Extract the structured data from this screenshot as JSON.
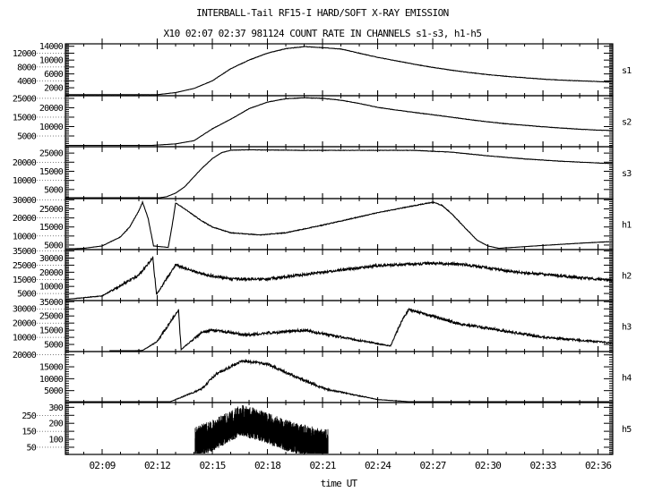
{
  "title": "INTERBALL-Tail RF15-I HARD/SOFT X-RAY EMISSION",
  "subtitle": "X10  02:07 02:37 981124  COUNT RATE IN CHANNELS s1-s3, h1-h5",
  "chart_data": {
    "type": "line",
    "title": "INTERBALL-Tail RF15-I HARD/SOFT X-RAY EMISSION",
    "xlabel": "time UT",
    "x_units": "minutes after 02:00",
    "xlim": [
      7,
      36.8
    ],
    "x_ticks": [
      9,
      12,
      15,
      18,
      21,
      24,
      27,
      30,
      33,
      36
    ],
    "x_tick_labels": [
      "02:09",
      "02:12",
      "02:15",
      "02:18",
      "02:21",
      "02:24",
      "02:27",
      "02:30",
      "02:33",
      "02:36"
    ],
    "colors": {
      "line": "#000000",
      "axis": "#000000",
      "background": "#ffffff"
    },
    "panels": [
      {
        "name": "s1",
        "ylim": [
          -300,
          14700
        ],
        "y_ticks": [
          2000,
          4000,
          6000,
          8000,
          10000,
          12000,
          14000
        ],
        "noise": 60,
        "points": [
          [
            7,
            0
          ],
          [
            12,
            0
          ],
          [
            13,
            600
          ],
          [
            14,
            1800
          ],
          [
            15,
            4000
          ],
          [
            16,
            7500
          ],
          [
            17,
            10000
          ],
          [
            18,
            12000
          ],
          [
            19,
            13300
          ],
          [
            20,
            13900
          ],
          [
            21,
            13600
          ],
          [
            22,
            13200
          ],
          [
            23,
            12000
          ],
          [
            24,
            10800
          ],
          [
            25,
            9800
          ],
          [
            26,
            8800
          ],
          [
            27,
            7900
          ],
          [
            28,
            7100
          ],
          [
            29,
            6400
          ],
          [
            30,
            5800
          ],
          [
            31,
            5300
          ],
          [
            32,
            4900
          ],
          [
            33,
            4500
          ],
          [
            34,
            4200
          ],
          [
            35,
            4000
          ],
          [
            36,
            3800
          ],
          [
            36.8,
            3600
          ]
        ]
      },
      {
        "name": "s2",
        "ylim": [
          -700,
          26400
        ],
        "y_ticks": [
          5000,
          10000,
          15000,
          20000,
          25000
        ],
        "noise": 100,
        "points": [
          [
            7,
            0
          ],
          [
            11.7,
            0
          ],
          [
            13,
            800
          ],
          [
            14,
            2500
          ],
          [
            15,
            8800
          ],
          [
            16,
            13900
          ],
          [
            17,
            19500
          ],
          [
            18,
            23000
          ],
          [
            19,
            24800
          ],
          [
            20,
            25300
          ],
          [
            21,
            25000
          ],
          [
            22,
            24000
          ],
          [
            23,
            22300
          ],
          [
            24,
            20200
          ],
          [
            25,
            18800
          ],
          [
            26,
            17500
          ],
          [
            27,
            16300
          ],
          [
            28,
            15000
          ],
          [
            29,
            13700
          ],
          [
            30,
            12500
          ],
          [
            31,
            11500
          ],
          [
            32,
            10700
          ],
          [
            33,
            9900
          ],
          [
            34,
            9200
          ],
          [
            35,
            8600
          ],
          [
            36,
            8100
          ],
          [
            36.8,
            7900
          ]
        ]
      },
      {
        "name": "s3",
        "ylim": [
          0,
          28500
        ],
        "y_ticks": [
          5000,
          10000,
          15000,
          20000,
          25000
        ],
        "noise": 100,
        "points": [
          [
            7,
            0
          ],
          [
            11.4,
            0
          ],
          [
            12,
            300
          ],
          [
            12.5,
            1000
          ],
          [
            13,
            3000
          ],
          [
            13.5,
            6500
          ],
          [
            14,
            12000
          ],
          [
            14.4,
            16300
          ],
          [
            15,
            22000
          ],
          [
            15.5,
            25200
          ],
          [
            16,
            26600
          ],
          [
            17,
            26800
          ],
          [
            20,
            26500
          ],
          [
            24,
            26500
          ],
          [
            26,
            26500
          ],
          [
            28,
            25500
          ],
          [
            30,
            23500
          ],
          [
            32,
            21800
          ],
          [
            34,
            20500
          ],
          [
            36.8,
            19200
          ]
        ]
      },
      {
        "name": "h1",
        "ylim": [
          2500,
          30700
        ],
        "y_ticks": [
          5000,
          10000,
          15000,
          20000,
          25000,
          30000
        ],
        "noise": 200,
        "points": [
          [
            7,
            2800
          ],
          [
            8,
            3200
          ],
          [
            9,
            4500
          ],
          [
            10,
            9500
          ],
          [
            10.5,
            15000
          ],
          [
            11,
            24000
          ],
          [
            11.2,
            28700
          ],
          [
            11.5,
            20000
          ],
          [
            11.8,
            4500
          ],
          [
            12.6,
            3700
          ],
          [
            12.8,
            15000
          ],
          [
            13,
            28300
          ],
          [
            13.5,
            25000
          ],
          [
            14.4,
            18500
          ],
          [
            15,
            15000
          ],
          [
            16,
            11800
          ],
          [
            17.6,
            10600
          ],
          [
            19,
            11800
          ],
          [
            21,
            16000
          ],
          [
            24,
            22900
          ],
          [
            26,
            26800
          ],
          [
            27,
            28700
          ],
          [
            27.5,
            27000
          ],
          [
            28,
            22600
          ],
          [
            29.4,
            7800
          ],
          [
            30,
            4500
          ],
          [
            30.6,
            3200
          ],
          [
            33,
            4800
          ],
          [
            35,
            6000
          ],
          [
            36.8,
            7000
          ]
        ]
      },
      {
        "name": "h2",
        "ylim": [
          0,
          36000
        ],
        "y_ticks": [
          5000,
          10000,
          15000,
          20000,
          25000,
          30000,
          35000
        ],
        "noise": 900,
        "points": [
          [
            7,
            800
          ],
          [
            9,
            3300
          ],
          [
            11,
            17900
          ],
          [
            11.76,
            30400
          ],
          [
            11.96,
            4400
          ],
          [
            13,
            25200
          ],
          [
            14.4,
            18900
          ],
          [
            16,
            15200
          ],
          [
            18,
            15200
          ],
          [
            21,
            20000
          ],
          [
            24,
            24600
          ],
          [
            27,
            26300
          ],
          [
            28.6,
            25600
          ],
          [
            31.4,
            20400
          ],
          [
            36.8,
            14200
          ]
        ]
      },
      {
        "name": "h3",
        "ylim": [
          0,
          35800
        ],
        "y_ticks": [
          5000,
          10000,
          15000,
          20000,
          25000,
          30000,
          35000
        ],
        "noise": 900,
        "points": [
          [
            9.4,
            0
          ],
          [
            11.2,
            800
          ],
          [
            12,
            7100
          ],
          [
            13.16,
            29400
          ],
          [
            13.3,
            1400
          ],
          [
            14.4,
            13300
          ],
          [
            15,
            15000
          ],
          [
            16.8,
            11700
          ],
          [
            20,
            15000
          ],
          [
            22.4,
            9200
          ],
          [
            24.7,
            3900
          ],
          [
            25.4,
            23700
          ],
          [
            25.7,
            29600
          ],
          [
            28.4,
            19600
          ],
          [
            33,
            10200
          ],
          [
            36.8,
            6000
          ]
        ]
      },
      {
        "name": "h4",
        "ylim": [
          0,
          21400
        ],
        "y_ticks": [
          5000,
          10000,
          15000,
          20000
        ],
        "noise": 500,
        "points": [
          [
            7,
            0
          ],
          [
            12.6,
            0
          ],
          [
            14.4,
            5600
          ],
          [
            15.2,
            11900
          ],
          [
            16.6,
            17500
          ],
          [
            18,
            16200
          ],
          [
            19.6,
            10600
          ],
          [
            21.2,
            5600
          ],
          [
            24,
            1250
          ],
          [
            26.4,
            0
          ],
          [
            36.8,
            0
          ]
        ]
      },
      {
        "name": "h5",
        "ylim": [
          5,
          330
        ],
        "y_ticks": [
          50,
          100,
          150,
          200,
          250,
          300
        ],
        "noise": 90,
        "spiky": true,
        "points": [
          [
            14.06,
            55
          ],
          [
            15,
            95
          ],
          [
            16,
            160
          ],
          [
            16.6,
            190
          ],
          [
            17.5,
            165
          ],
          [
            18.5,
            120
          ],
          [
            19.5,
            80
          ],
          [
            20.5,
            55
          ],
          [
            21.3,
            40
          ]
        ]
      }
    ]
  }
}
